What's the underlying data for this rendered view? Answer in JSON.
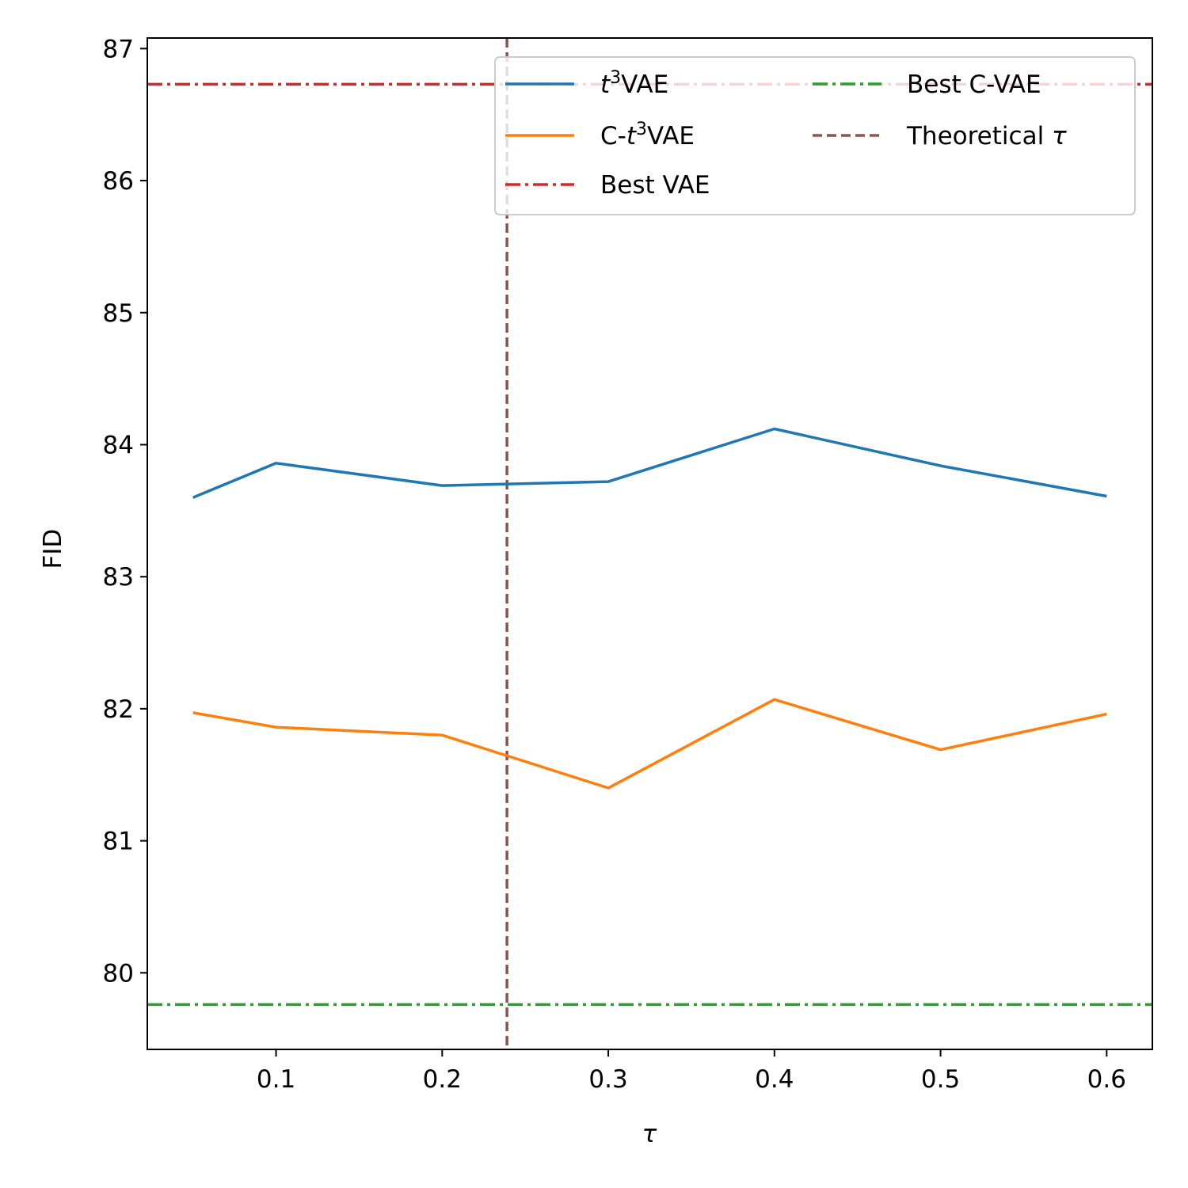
{
  "chart_data": {
    "type": "line",
    "xlabel": "τ",
    "ylabel": "FID",
    "xlim": [
      0.0225,
      0.6275
    ],
    "ylim": [
      79.42,
      87.08
    ],
    "x_ticks": [
      0.1,
      0.2,
      0.3,
      0.4,
      0.5,
      0.6
    ],
    "x_tick_labels": [
      "0.1",
      "0.2",
      "0.3",
      "0.4",
      "0.5",
      "0.6"
    ],
    "y_ticks": [
      80,
      81,
      82,
      83,
      84,
      85,
      86,
      87
    ],
    "y_tick_labels": [
      "80",
      "81",
      "82",
      "83",
      "84",
      "85",
      "86",
      "87"
    ],
    "grid": false,
    "legend_position": "top-right",
    "x": [
      0.05,
      0.1,
      0.2,
      0.3,
      0.4,
      0.5,
      0.6
    ],
    "series": [
      {
        "name": "t3VAE",
        "display_base": "t",
        "display_sup": "3",
        "display_suffix": "VAE",
        "display_prefix": "",
        "italic_base": true,
        "color": "#1f77b4",
        "values": [
          83.6,
          83.86,
          83.69,
          83.72,
          84.12,
          83.84,
          83.61
        ]
      },
      {
        "name": "C-t3VAE",
        "display_prefix": "C-",
        "display_base": "t",
        "display_sup": "3",
        "display_suffix": "VAE",
        "italic_base": true,
        "color": "#ff7f0e",
        "values": [
          81.97,
          81.86,
          81.8,
          81.4,
          82.07,
          81.69,
          81.96
        ]
      }
    ],
    "reference_lines": [
      {
        "name": "Best VAE",
        "orientation": "horizontal",
        "value": 86.73,
        "color": "#d62728",
        "style": "dashdot"
      },
      {
        "name": "Best C-VAE",
        "orientation": "horizontal",
        "value": 79.76,
        "color": "#2ca02c",
        "style": "dashdot"
      },
      {
        "name": "Theoretical τ",
        "orientation": "vertical",
        "value": 0.239,
        "color": "#8c564b",
        "style": "dashed"
      }
    ],
    "legend_order": [
      "t3VAE",
      "C-t3VAE",
      "Best VAE",
      "Best C-VAE",
      "Theoretical τ"
    ]
  }
}
